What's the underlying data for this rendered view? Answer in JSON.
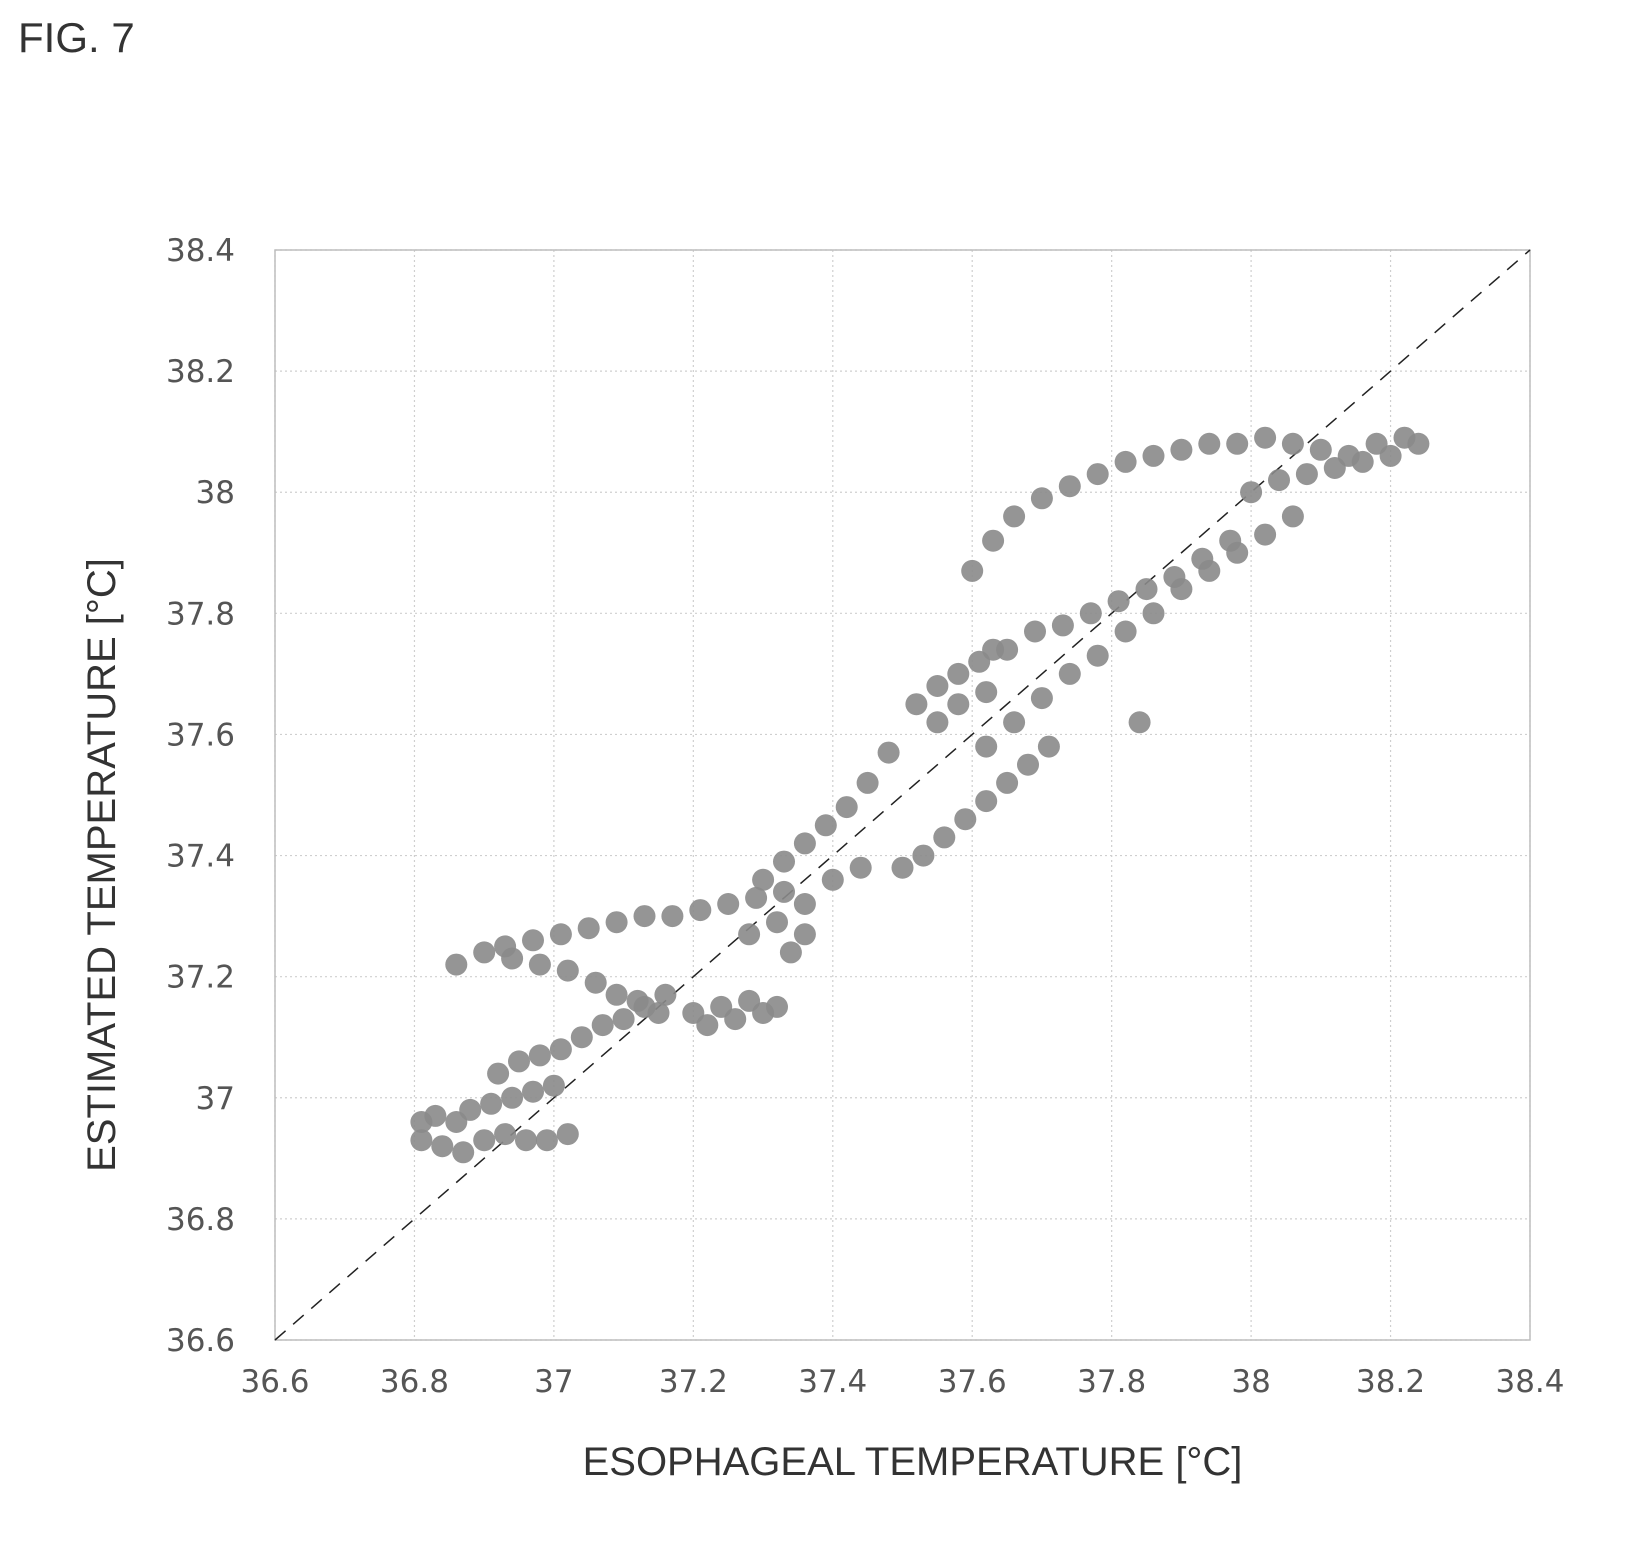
{
  "figure_label": "FIG. 7",
  "chart_data": {
    "type": "scatter",
    "title": "",
    "xlabel": "ESOPHAGEAL TEMPERATURE [°C]",
    "ylabel": "ESTIMATED TEMPERATURE [°C]",
    "xlim": [
      36.6,
      38.4
    ],
    "ylim": [
      36.6,
      38.4
    ],
    "x_ticks": [
      "36.6",
      "36.8",
      "37",
      "37.2",
      "37.4",
      "37.6",
      "37.8",
      "38",
      "38.2",
      "38.4"
    ],
    "y_ticks": [
      "36.6",
      "36.8",
      "37",
      "37.2",
      "37.4",
      "37.6",
      "37.8",
      "38",
      "38.2",
      "38.4"
    ],
    "grid": true,
    "reference_line": {
      "style": "dashed",
      "from": [
        36.6,
        36.6
      ],
      "to": [
        38.4,
        38.4
      ]
    },
    "marker_color": "#8a8a8a",
    "clusters": [
      {
        "x": [
          36.81,
          36.84,
          36.87,
          36.9,
          36.93,
          36.96,
          36.99,
          37.02
        ],
        "y": [
          36.93,
          36.92,
          36.91,
          36.93,
          36.94,
          36.93,
          36.93,
          36.94
        ]
      },
      {
        "x": [
          36.81,
          36.83,
          36.86,
          36.88,
          36.91,
          36.94,
          36.97,
          37.0
        ],
        "y": [
          36.96,
          36.97,
          36.96,
          36.98,
          36.99,
          37.0,
          37.01,
          37.02
        ]
      },
      {
        "x": [
          36.92,
          36.95,
          36.98,
          37.01,
          37.04,
          37.07,
          37.1,
          37.13,
          37.16
        ],
        "y": [
          37.04,
          37.06,
          37.07,
          37.08,
          37.1,
          37.12,
          37.13,
          37.15,
          37.17
        ]
      },
      {
        "x": [
          36.86,
          36.9,
          36.94,
          36.98,
          37.02,
          37.06,
          37.09,
          37.12,
          37.15
        ],
        "y": [
          37.22,
          37.24,
          37.23,
          37.22,
          37.21,
          37.19,
          37.17,
          37.16,
          37.14
        ]
      },
      {
        "x": [
          36.93,
          36.97,
          37.01,
          37.05,
          37.09,
          37.13,
          37.17,
          37.21,
          37.25,
          37.29,
          37.33
        ],
        "y": [
          37.25,
          37.26,
          37.27,
          37.28,
          37.29,
          37.3,
          37.3,
          37.31,
          37.32,
          37.33,
          37.34
        ]
      },
      {
        "x": [
          37.2,
          37.22,
          37.24,
          37.26,
          37.28,
          37.3,
          37.32,
          37.34,
          37.36
        ],
        "y": [
          37.14,
          37.12,
          37.15,
          37.13,
          37.16,
          37.14,
          37.15,
          37.24,
          37.27
        ]
      },
      {
        "x": [
          37.3,
          37.33,
          37.36,
          37.39,
          37.42,
          37.45,
          37.48
        ],
        "y": [
          37.36,
          37.39,
          37.42,
          37.45,
          37.48,
          37.52,
          37.57
        ]
      },
      {
        "x": [
          37.28,
          37.32,
          37.36,
          37.4,
          37.44
        ],
        "y": [
          37.27,
          37.29,
          37.32,
          37.36,
          37.38
        ]
      },
      {
        "x": [
          37.5,
          37.53,
          37.56,
          37.59,
          37.62,
          37.65,
          37.68,
          37.71
        ],
        "y": [
          37.38,
          37.4,
          37.43,
          37.46,
          37.49,
          37.52,
          37.55,
          37.58
        ]
      },
      {
        "x": [
          37.52,
          37.55,
          37.58,
          37.61,
          37.63,
          37.55,
          37.58,
          37.62
        ],
        "y": [
          37.65,
          37.68,
          37.7,
          37.72,
          37.74,
          37.62,
          37.65,
          37.67
        ]
      },
      {
        "x": [
          37.62,
          37.66,
          37.7,
          37.74,
          37.78,
          37.82,
          37.86,
          37.9,
          37.94,
          37.98,
          38.02,
          38.06
        ],
        "y": [
          37.58,
          37.62,
          37.66,
          37.7,
          37.73,
          37.77,
          37.8,
          37.84,
          37.87,
          37.9,
          37.93,
          37.96
        ]
      },
      {
        "x": [
          37.65,
          37.69,
          37.73,
          37.77,
          37.81,
          37.85,
          37.89,
          37.93,
          37.97
        ],
        "y": [
          37.74,
          37.77,
          37.78,
          37.8,
          37.82,
          37.84,
          37.86,
          37.89,
          37.92
        ]
      },
      {
        "x": [
          37.6,
          37.63,
          37.66,
          37.7,
          37.74,
          37.78,
          37.82,
          37.86,
          37.9,
          37.94
        ],
        "y": [
          37.87,
          37.92,
          37.96,
          37.99,
          38.01,
          38.03,
          38.05,
          38.06,
          38.07,
          38.08
        ]
      },
      {
        "x": [
          37.98,
          38.02,
          38.06,
          38.1,
          38.14,
          38.18,
          38.22,
          38.24
        ],
        "y": [
          38.08,
          38.09,
          38.08,
          38.07,
          38.06,
          38.08,
          38.09,
          38.08
        ]
      },
      {
        "x": [
          38.0,
          38.04,
          38.08,
          38.12,
          38.16,
          38.2
        ],
        "y": [
          38.0,
          38.02,
          38.03,
          38.04,
          38.05,
          38.06
        ]
      },
      {
        "x": [
          37.84
        ],
        "y": [
          37.62
        ]
      }
    ]
  }
}
